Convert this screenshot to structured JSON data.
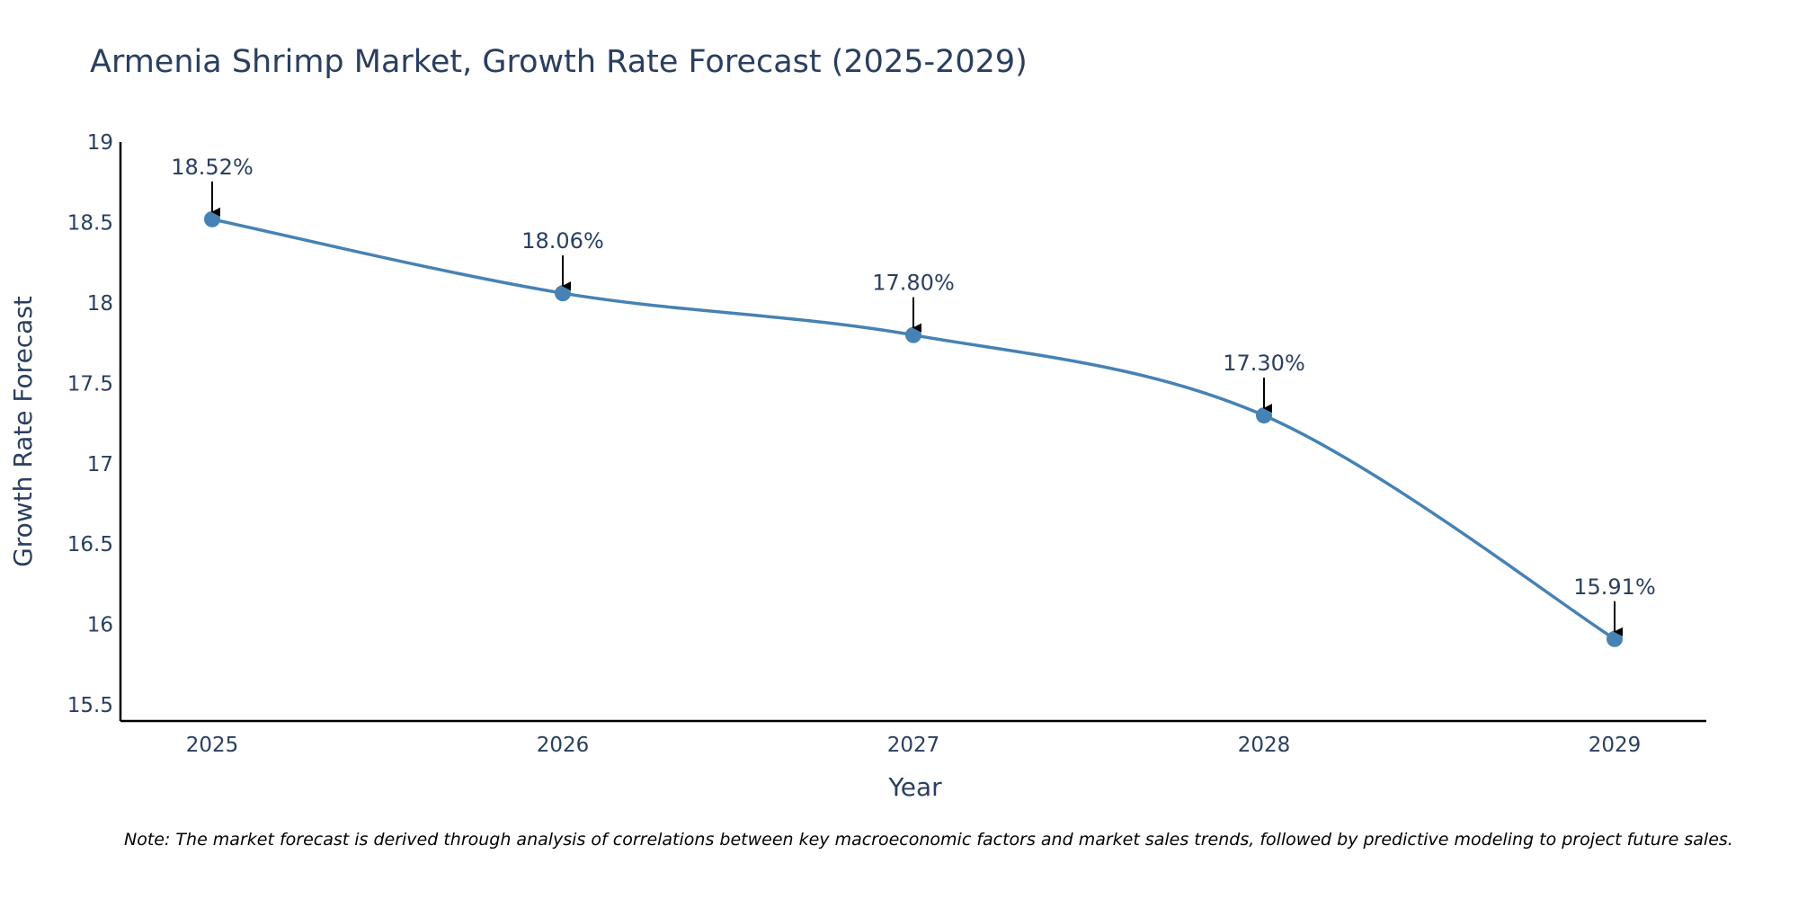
{
  "chart_data": {
    "type": "line",
    "title": "Armenia Shrimp Market, Growth Rate Forecast (2025-2029)",
    "xlabel": "Year",
    "ylabel": "Growth Rate Forecast",
    "categories": [
      "2025",
      "2026",
      "2027",
      "2028",
      "2029"
    ],
    "values": [
      18.52,
      18.06,
      17.8,
      17.3,
      15.91
    ],
    "data_labels": [
      "18.52%",
      "18.06%",
      "17.80%",
      "17.30%",
      "15.91%"
    ],
    "ylim": [
      15.4,
      19.0
    ],
    "yticks": [
      15.5,
      16,
      16.5,
      17,
      17.5,
      18,
      18.5,
      19
    ],
    "ytick_labels": [
      "15.5",
      "16",
      "16.5",
      "17",
      "17.5",
      "18",
      "18.5",
      "19"
    ],
    "grid": false,
    "line_shape": "spline",
    "series_color": "#4682b4",
    "axis_color": "#000000",
    "text_color": "#2a3f5f",
    "note": "Note: The market forecast is derived through analysis of correlations between key macroeconomic factors and market sales trends, followed by predictive modeling to project future sales."
  }
}
